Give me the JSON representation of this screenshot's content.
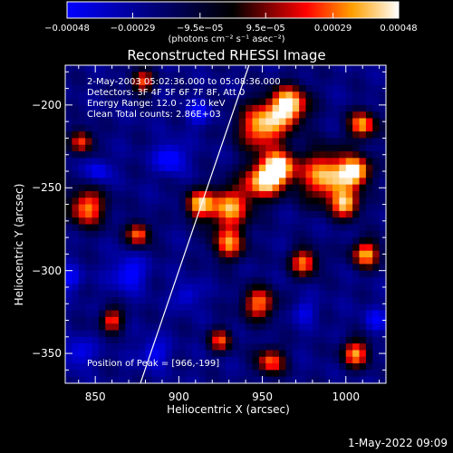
{
  "chart_data": {
    "type": "heatmap",
    "title": "Reconstructed RHESSI Image",
    "xlabel": "Heliocentric X (arcsec)",
    "ylabel": "Heliocentric Y (arcsec)",
    "xlim": [
      832,
      1024
    ],
    "ylim": [
      -368,
      -176
    ],
    "x_ticks": [
      850,
      900,
      950,
      1000
    ],
    "x_tick_labels": [
      "850",
      "900",
      "950",
      "1000"
    ],
    "y_ticks": [
      -200,
      -250,
      -300,
      -350
    ],
    "y_tick_labels": [
      "−200",
      "−250",
      "−300",
      "−350"
    ],
    "colorbar": {
      "range": [
        -0.00048,
        0.00048
      ],
      "ticks": [
        -0.00048,
        -0.00029,
        -9.5e-05,
        9.5e-05,
        0.00029,
        0.00048
      ],
      "tick_labels": [
        "−0.00048",
        "−0.00029",
        "−9.5e−05",
        "9.5e−05",
        "0.00029",
        "0.00048"
      ],
      "units_label": "(photons cm⁻² s⁻¹ asec⁻²)",
      "colormap": [
        "#0000ff",
        "#000000",
        "#ff0000",
        "#ffa000",
        "#ffffff"
      ]
    },
    "annotations": [
      "2‑May‑2003 05:02:36.000 to 05:08:36.000",
      "Detectors: 3F 4F 5F 6F 7F 8F, Att 0",
      "Energy Range: 12.0 ‑ 25.0 keV",
      "Clean     Total counts: 2.86E+03"
    ],
    "peak_label": "Position of Peak = [966,‑199]",
    "peak": [
      966,
      -199
    ],
    "limb_line": [
      [
        877,
        -368
      ],
      [
        942,
        -176
      ]
    ],
    "intensity_blobs": [
      {
        "x": 966,
        "y": -200,
        "w": 8,
        "v": 1.0
      },
      {
        "x": 950,
        "y": -213,
        "w": 10,
        "v": 0.85
      },
      {
        "x": 960,
        "y": -238,
        "w": 7,
        "v": 0.9
      },
      {
        "x": 950,
        "y": -246,
        "w": 8,
        "v": 0.8
      },
      {
        "x": 988,
        "y": -243,
        "w": 11,
        "v": 0.85
      },
      {
        "x": 1006,
        "y": -240,
        "w": 6,
        "v": 0.95
      },
      {
        "x": 1010,
        "y": -212,
        "w": 6,
        "v": 0.75
      },
      {
        "x": 1000,
        "y": -260,
        "w": 6,
        "v": 0.7
      },
      {
        "x": 1012,
        "y": -290,
        "w": 6,
        "v": 0.75
      },
      {
        "x": 930,
        "y": -262,
        "w": 9,
        "v": 0.75
      },
      {
        "x": 912,
        "y": -260,
        "w": 6,
        "v": 0.7
      },
      {
        "x": 930,
        "y": -284,
        "w": 7,
        "v": 0.6
      },
      {
        "x": 975,
        "y": -295,
        "w": 6,
        "v": 0.65
      },
      {
        "x": 948,
        "y": -320,
        "w": 7,
        "v": 0.65
      },
      {
        "x": 955,
        "y": -355,
        "w": 6,
        "v": 0.6
      },
      {
        "x": 1006,
        "y": -350,
        "w": 6,
        "v": 0.7
      },
      {
        "x": 845,
        "y": -262,
        "w": 8,
        "v": 0.7
      },
      {
        "x": 842,
        "y": -222,
        "w": 5,
        "v": 0.55
      },
      {
        "x": 876,
        "y": -278,
        "w": 5,
        "v": 0.65
      },
      {
        "x": 878,
        "y": -186,
        "w": 5,
        "v": 0.55
      },
      {
        "x": 860,
        "y": -330,
        "w": 5,
        "v": 0.55
      },
      {
        "x": 925,
        "y": -342,
        "w": 5,
        "v": 0.5
      },
      {
        "x": 895,
        "y": -232,
        "w": 6,
        "v": -0.7
      },
      {
        "x": 912,
        "y": -205,
        "w": 5,
        "v": -0.55
      },
      {
        "x": 870,
        "y": -302,
        "w": 7,
        "v": -0.6
      },
      {
        "x": 885,
        "y": -350,
        "w": 6,
        "v": -0.5
      },
      {
        "x": 852,
        "y": -240,
        "w": 5,
        "v": -0.5
      },
      {
        "x": 905,
        "y": -315,
        "w": 5,
        "v": -0.45
      },
      {
        "x": 835,
        "y": -305,
        "w": 5,
        "v": -0.5
      },
      {
        "x": 840,
        "y": -350,
        "w": 6,
        "v": -0.5
      },
      {
        "x": 1018,
        "y": -330,
        "w": 5,
        "v": -0.45
      },
      {
        "x": 975,
        "y": -325,
        "w": 5,
        "v": -0.4
      }
    ]
  },
  "footer_text": "1‑May‑2022 09:09"
}
